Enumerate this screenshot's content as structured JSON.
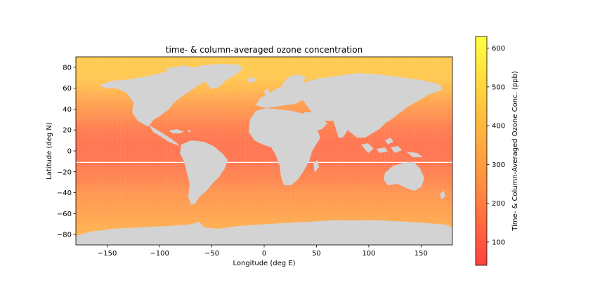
{
  "chart_data": {
    "type": "heatmap",
    "title": "time- & column-averaged ozone concentration",
    "xlabel": "Longitude (deg E)",
    "ylabel": "Latitude (deg N)",
    "xlim": [
      -180,
      180
    ],
    "ylim": [
      -90,
      90
    ],
    "x_ticks": [
      -150,
      -100,
      -50,
      0,
      50,
      100,
      150
    ],
    "y_ticks": [
      -80,
      -60,
      -40,
      -20,
      0,
      20,
      40,
      60,
      80
    ],
    "x_tick_labels": [
      "−150",
      "−100",
      "−50",
      "0",
      "50",
      "100",
      "150"
    ],
    "y_tick_labels": [
      "−80",
      "−60",
      "−40",
      "−20",
      "0",
      "20",
      "40",
      "60",
      "80"
    ],
    "grid": false,
    "legend": "none",
    "land_color": "#d3d3d3",
    "colorbar": {
      "label": "Time- & Column-Averaged Ozone Conc. (ppb)",
      "range": [
        40,
        630
      ],
      "ticks": [
        100,
        200,
        300,
        400,
        500,
        600
      ],
      "tick_labels": [
        "100",
        "200",
        "300",
        "400",
        "500",
        "600"
      ],
      "colormap": [
        "#ff4040",
        "#ff8a40",
        "#ffc040",
        "#ffff40"
      ]
    },
    "ozone_profile_by_latitude": {
      "lat": [
        -90,
        -80,
        -70,
        -60,
        -50,
        -40,
        -30,
        -20,
        -10,
        0,
        10,
        20,
        30,
        40,
        50,
        60,
        70,
        80,
        90
      ],
      "ppb": [
        370,
        360,
        330,
        300,
        270,
        240,
        205,
        175,
        155,
        145,
        150,
        170,
        210,
        260,
        320,
        390,
        440,
        450,
        450
      ]
    },
    "artifact_line_lat": -11
  }
}
